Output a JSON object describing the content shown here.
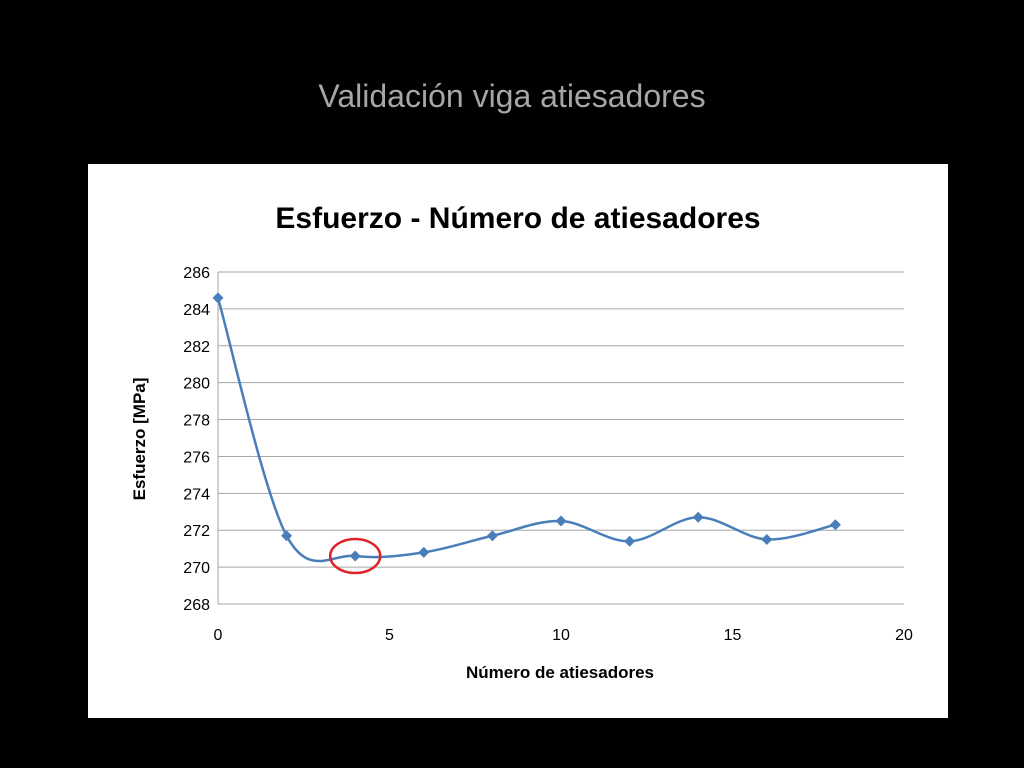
{
  "slide": {
    "title": "Validación viga atiesadores"
  },
  "colors": {
    "background": "#000000",
    "slide_title": "#a6a6a6",
    "series_line": "#4a7ebb",
    "highlight_circle": "#e0232a",
    "grid": "#a6a6a6"
  },
  "chart_data": {
    "type": "line",
    "title": "Esfuerzo - Número de atiesadores",
    "xlabel": "Número de atiesadores",
    "ylabel": "Esfuerzo [MPa]",
    "xlim": [
      0,
      20
    ],
    "ylim": [
      268,
      286
    ],
    "xticks": [
      0,
      5,
      10,
      15,
      20
    ],
    "yticks": [
      268,
      270,
      272,
      274,
      276,
      278,
      280,
      282,
      284,
      286
    ],
    "grid": "horizontal",
    "smooth": true,
    "marker": "diamond",
    "series": [
      {
        "x": [
          0,
          2,
          4,
          6,
          8,
          10,
          12,
          14,
          16,
          18
        ],
        "y": [
          284.6,
          271.7,
          270.6,
          270.8,
          271.7,
          272.5,
          271.4,
          272.7,
          271.5,
          272.3
        ]
      }
    ],
    "highlight": {
      "x": 4,
      "y": 270.6,
      "shape": "circle"
    }
  }
}
